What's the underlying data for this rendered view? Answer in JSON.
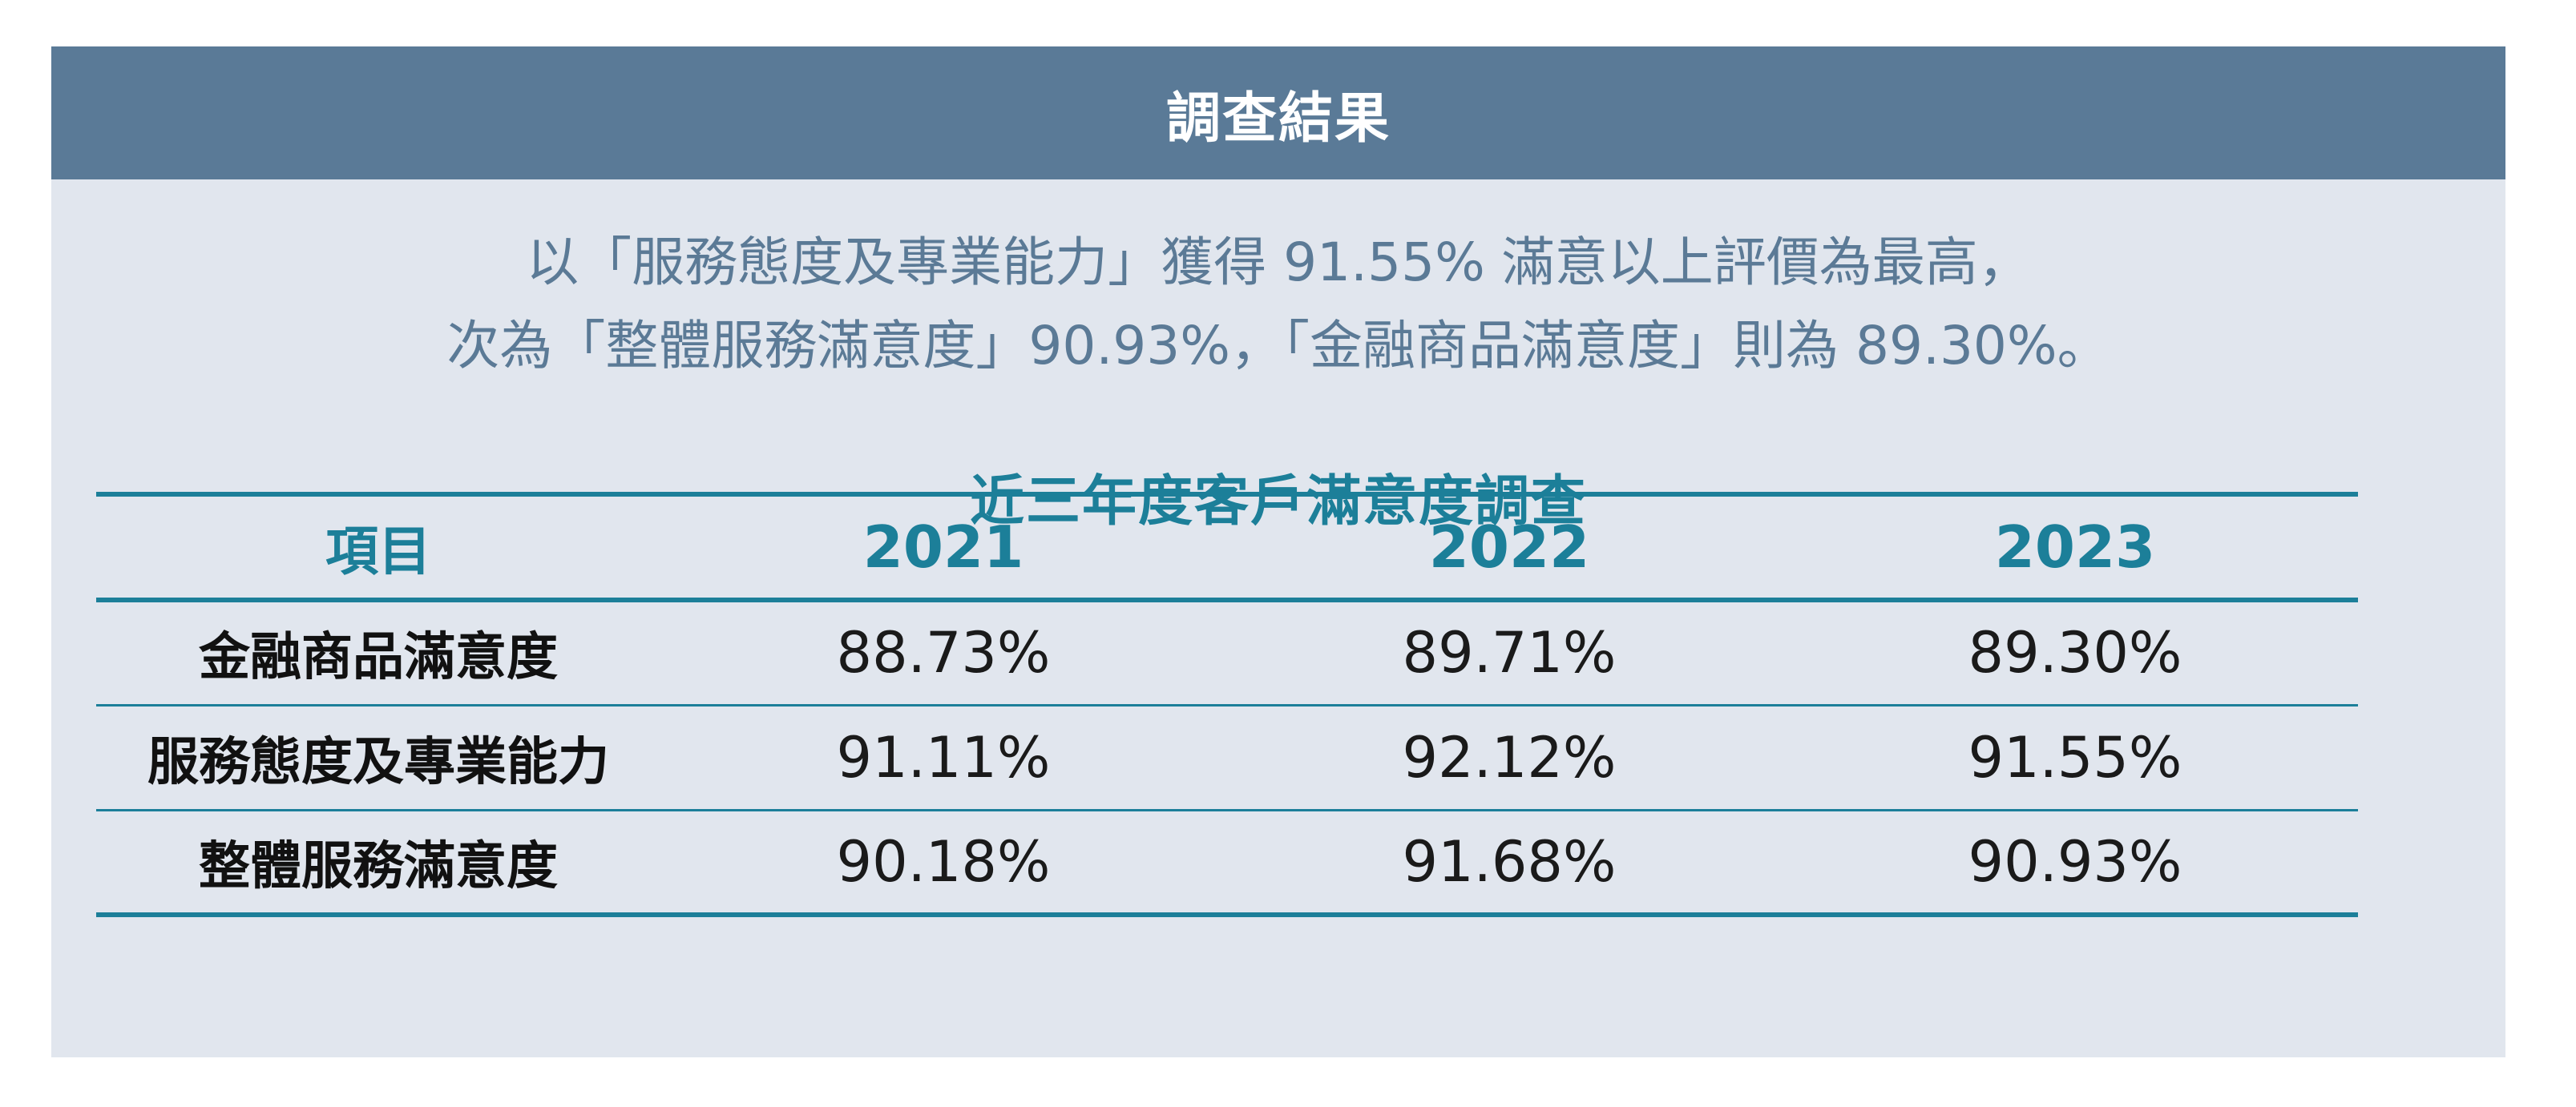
{
  "header": {
    "title": "調查結果"
  },
  "summary": {
    "line1": "以「服務態度及專業能力」獲得 91.55% 滿意以上評價為最高，",
    "line2": "次為「整體服務滿意度」90.93%，「金融商品滿意度」則為 89.30%。"
  },
  "table": {
    "title": "近三年度客戶滿意度調查",
    "headers": [
      "項目",
      "2021",
      "2022",
      "2023"
    ],
    "rows": [
      [
        "金融商品滿意度",
        "88.73%",
        "89.71%",
        "89.30%"
      ],
      [
        "服務態度及專業能力",
        "91.11%",
        "92.12%",
        "91.55%"
      ],
      [
        "整體服務滿意度",
        "90.18%",
        "91.68%",
        "90.93%"
      ]
    ]
  },
  "chart_data": {
    "type": "table",
    "title": "近三年度客戶滿意度調查",
    "categories": [
      "2021",
      "2022",
      "2023"
    ],
    "series": [
      {
        "name": "金融商品滿意度",
        "values": [
          88.73,
          89.71,
          89.3
        ]
      },
      {
        "name": "服務態度及專業能力",
        "values": [
          91.11,
          92.12,
          91.55
        ]
      },
      {
        "name": "整體服務滿意度",
        "values": [
          90.18,
          91.68,
          90.93
        ]
      }
    ]
  }
}
